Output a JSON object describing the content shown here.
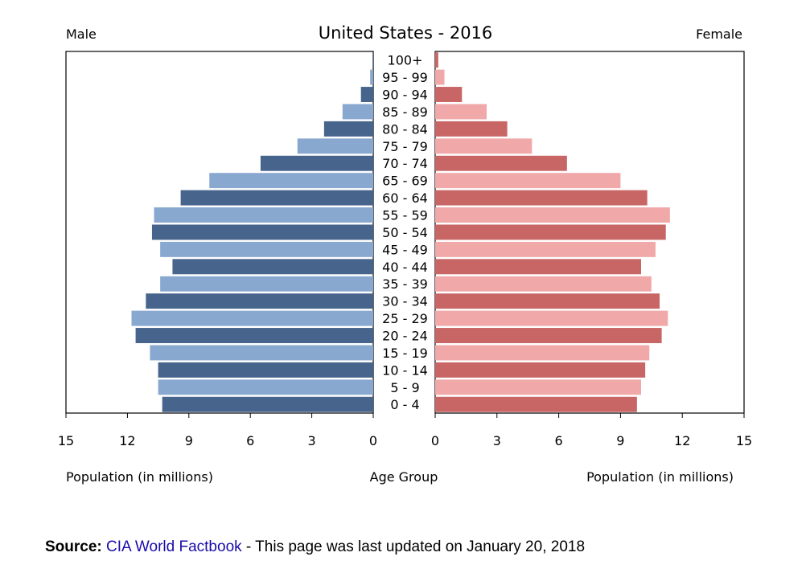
{
  "chart_data": {
    "type": "bar",
    "title": "United States - 2016",
    "left_label": "Male",
    "right_label": "Female",
    "xlabel_left": "Population (in millions)",
    "xlabel_center": "Age Group",
    "xlabel_right": "Population (in millions)",
    "xlim": [
      0,
      15
    ],
    "x_ticks": [
      0,
      3,
      6,
      9,
      12,
      15
    ],
    "categories": [
      "0 - 4",
      "5 - 9",
      "10 - 14",
      "15 - 19",
      "20 - 24",
      "25 - 29",
      "30 - 34",
      "35 - 39",
      "40 - 44",
      "45 - 49",
      "50 - 54",
      "55 - 59",
      "60 - 64",
      "65 - 69",
      "70 - 74",
      "75 - 79",
      "80 - 84",
      "85 - 89",
      "90 - 94",
      "95 - 99",
      "100+"
    ],
    "series": [
      {
        "name": "Male",
        "values": [
          10.3,
          10.5,
          10.5,
          10.9,
          11.6,
          11.8,
          11.1,
          10.4,
          9.8,
          10.4,
          10.8,
          10.7,
          9.4,
          8.0,
          5.5,
          3.7,
          2.4,
          1.5,
          0.6,
          0.15,
          0.03
        ],
        "colors": [
          "#46648c",
          "#88a8d0"
        ]
      },
      {
        "name": "Female",
        "values": [
          9.8,
          10.0,
          10.2,
          10.4,
          11.0,
          11.3,
          10.9,
          10.5,
          10.0,
          10.7,
          11.2,
          11.4,
          10.3,
          9.0,
          6.4,
          4.7,
          3.5,
          2.5,
          1.3,
          0.45,
          0.15
        ],
        "colors": [
          "#c86666",
          "#f0a8a8"
        ]
      }
    ]
  },
  "source": {
    "label": "Source:",
    "link_text": "CIA World Factbook",
    "text": " - This page was last updated on January 20, 2018"
  }
}
